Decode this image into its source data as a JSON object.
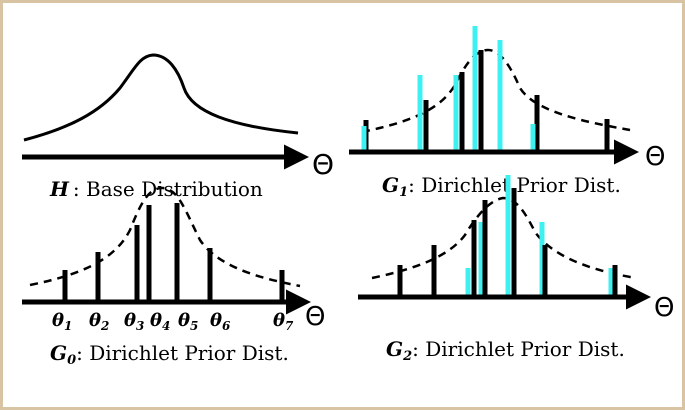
{
  "axis_symbol": "Θ",
  "colors": {
    "frame": "#d8c4a2",
    "black": "#000000",
    "cyan": "#3ff0f0"
  },
  "panels": {
    "H": {
      "symbol": "H",
      "caption": ": Base Distribution"
    },
    "G0": {
      "symbol": "G",
      "sub": "0",
      "caption": ": Dirichlet Prior Dist.",
      "thetas": [
        {
          "sym": "θ",
          "sub": "1"
        },
        {
          "sym": "θ",
          "sub": "2"
        },
        {
          "sym": "θ",
          "sub": "3"
        },
        {
          "sym": "θ",
          "sub": "4"
        },
        {
          "sym": "θ",
          "sub": "5"
        },
        {
          "sym": "θ",
          "sub": "6"
        },
        {
          "sym": "θ",
          "sub": "7"
        }
      ]
    },
    "G1": {
      "symbol": "G",
      "sub": "1",
      "caption": ": Dirichlet Prior Dist."
    },
    "G2": {
      "symbol": "G",
      "sub": "2",
      "caption": ": Dirichlet Prior Dist."
    }
  }
}
